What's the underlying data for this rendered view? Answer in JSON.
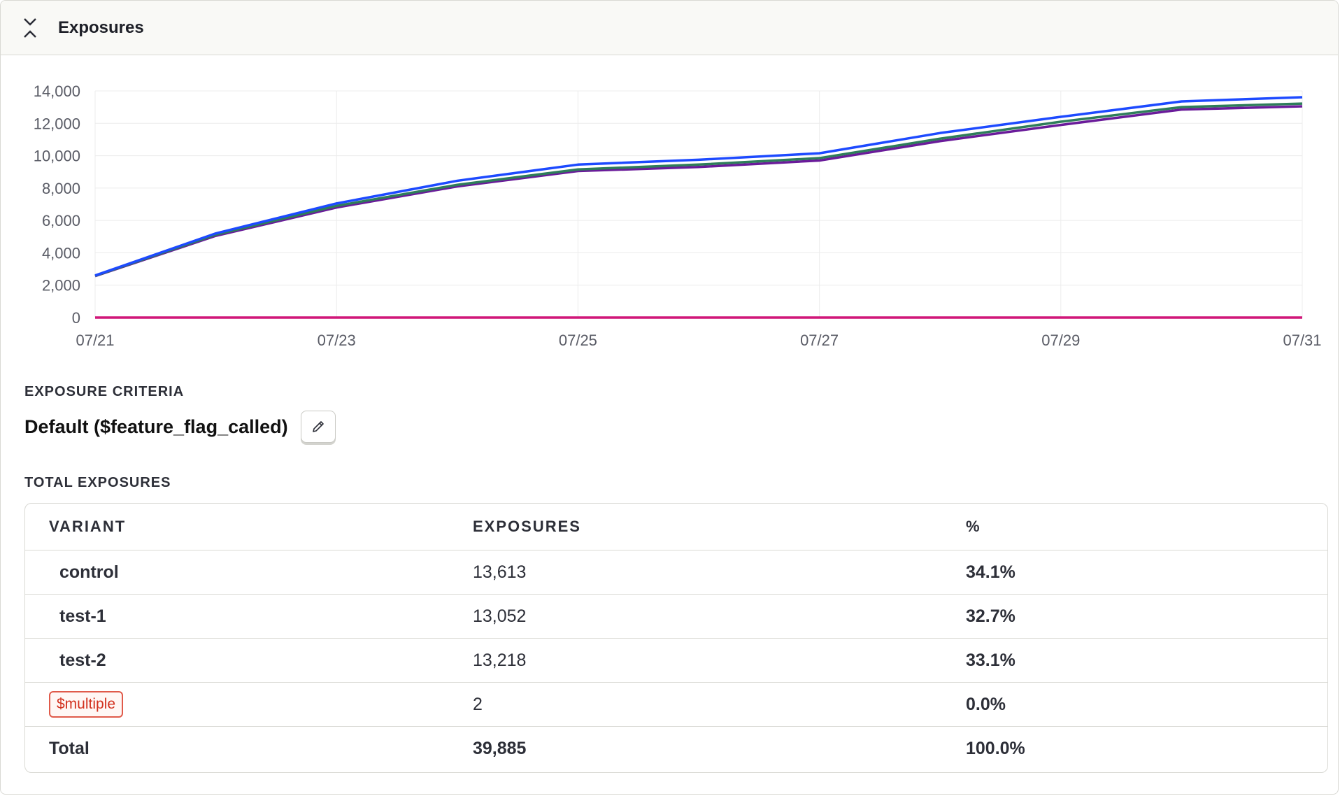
{
  "panel": {
    "title": "Exposures"
  },
  "exposure_criteria": {
    "label": "EXPOSURE CRITERIA",
    "value": "Default ($feature_flag_called)"
  },
  "total_exposures": {
    "label": "TOTAL EXPOSURES",
    "columns": [
      "VARIANT",
      "EXPOSURES",
      "%"
    ],
    "rows": [
      {
        "variant": "control",
        "exposures": "13,613",
        "percent": "34.1%"
      },
      {
        "variant": "test-1",
        "exposures": "13,052",
        "percent": "32.7%"
      },
      {
        "variant": "test-2",
        "exposures": "13,218",
        "percent": "33.1%"
      },
      {
        "variant": "$multiple",
        "exposures": "2",
        "percent": "0.0%"
      }
    ],
    "total": {
      "variant": "Total",
      "exposures": "39,885",
      "percent": "100.0%"
    }
  },
  "chart_data": {
    "type": "line",
    "x": [
      "07/21",
      "07/22",
      "07/23",
      "07/24",
      "07/25",
      "07/26",
      "07/27",
      "07/28",
      "07/29",
      "07/30",
      "07/31"
    ],
    "x_tick_labels": [
      "07/21",
      "07/23",
      "07/25",
      "07/27",
      "07/29",
      "07/31"
    ],
    "y_tick_labels": [
      "0",
      "2,000",
      "4,000",
      "6,000",
      "8,000",
      "10,000",
      "12,000",
      "14,000"
    ],
    "ylim": [
      0,
      14000
    ],
    "grid": true,
    "series": [
      {
        "color": "#1d4aff",
        "values": [
          2600,
          5200,
          7050,
          8450,
          9450,
          9750,
          10150,
          11400,
          12400,
          13350,
          13613
        ]
      },
      {
        "color": "#2e7d5a",
        "values": [
          2580,
          5120,
          6900,
          8200,
          9150,
          9450,
          9850,
          11050,
          12100,
          13000,
          13218
        ]
      },
      {
        "color": "#6a1b9a",
        "values": [
          2560,
          5050,
          6800,
          8100,
          9050,
          9300,
          9700,
          10900,
          11900,
          12850,
          13052
        ]
      },
      {
        "color": "#d01779",
        "values": [
          0,
          0,
          0,
          0,
          0,
          0,
          0,
          0,
          0,
          0,
          2
        ]
      }
    ]
  }
}
